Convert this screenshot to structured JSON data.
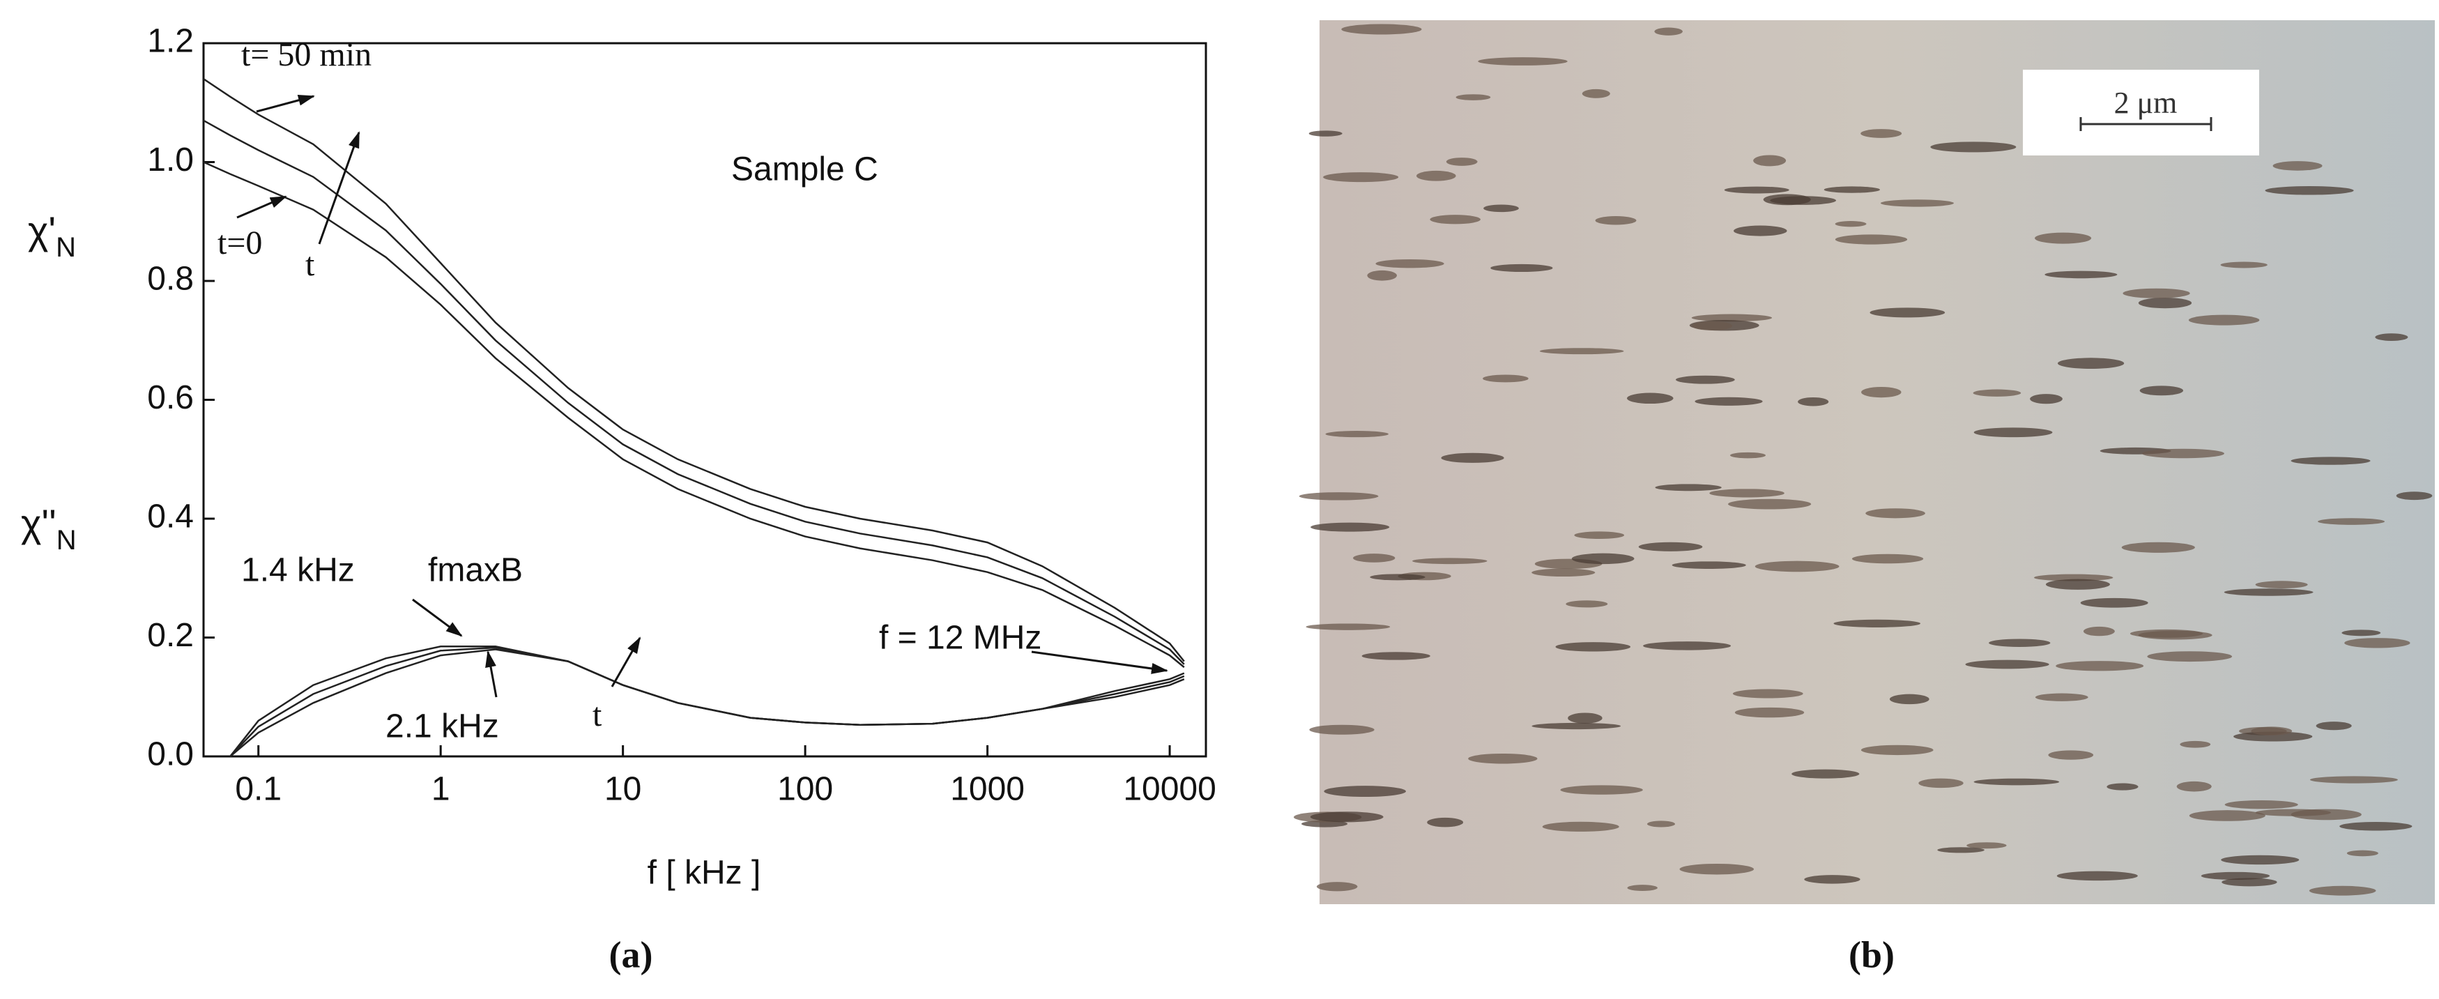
{
  "chart_data": {
    "type": "line",
    "x_label": "f [ kHz ]",
    "y_labels": [
      {
        "main": "χ'",
        "sub": "N"
      },
      {
        "main": "χ''",
        "sub": "N"
      }
    ],
    "log_x": true,
    "x": [
      0.05,
      0.07,
      0.1,
      0.2,
      0.5,
      1,
      2,
      5,
      10,
      20,
      50,
      100,
      200,
      500,
      1000,
      2000,
      5000,
      10000,
      12000
    ],
    "series": [
      {
        "color": "#222222",
        "values": [
          1.14,
          1.11,
          1.08,
          1.03,
          0.93,
          0.83,
          0.73,
          0.62,
          0.55,
          0.5,
          0.45,
          0.42,
          0.4,
          0.38,
          0.36,
          0.32,
          0.25,
          0.19,
          0.16
        ]
      },
      {
        "color": "#222222",
        "values": [
          1.07,
          1.045,
          1.02,
          0.975,
          0.885,
          0.795,
          0.7,
          0.595,
          0.525,
          0.475,
          0.425,
          0.395,
          0.375,
          0.355,
          0.335,
          0.3,
          0.235,
          0.18,
          0.155
        ]
      },
      {
        "color": "#222222",
        "values": [
          1.0,
          0.98,
          0.96,
          0.92,
          0.84,
          0.76,
          0.67,
          0.57,
          0.5,
          0.45,
          0.4,
          0.37,
          0.35,
          0.33,
          0.31,
          0.28,
          0.22,
          0.17,
          0.15
        ]
      },
      {
        "color": "#222222",
        "values": [
          null,
          0,
          0.06,
          0.12,
          0.165,
          0.185,
          0.185,
          0.16,
          0.12,
          0.09,
          0.065,
          0.057,
          0.053,
          0.055,
          0.065,
          0.08,
          0.11,
          0.13,
          0.14
        ]
      },
      {
        "color": "#222222",
        "values": [
          null,
          0,
          0.05,
          0.105,
          0.152,
          0.178,
          0.183,
          0.16,
          0.12,
          0.09,
          0.065,
          0.057,
          0.053,
          0.055,
          0.065,
          0.08,
          0.105,
          0.125,
          0.135
        ]
      },
      {
        "color": "#222222",
        "values": [
          null,
          0,
          0.04,
          0.09,
          0.14,
          0.17,
          0.18,
          0.16,
          0.12,
          0.09,
          0.065,
          0.057,
          0.053,
          0.055,
          0.065,
          0.08,
          0.1,
          0.12,
          0.13
        ]
      }
    ],
    "xlim": [
      0.05,
      15800
    ],
    "xticks": [
      0.1,
      1,
      10,
      100,
      1000,
      10000
    ],
    "ylim": [
      0,
      1.2
    ],
    "yticks": [
      {
        "value": 0,
        "label": "0.0"
      },
      0.2,
      0.4,
      0.6,
      0.8,
      {
        "value": 1,
        "label": "1.0"
      },
      1.2
    ],
    "annotations": [
      "t= 50 min",
      "t=0",
      "t",
      "Sample C",
      "1.4 kHz",
      "fmaxB",
      "2.1 kHz",
      "t",
      "f = 12 MHz"
    ]
  },
  "panels": {
    "a_label": "(a)",
    "b_label": "(b)"
  },
  "micrograph": {
    "scale_bar_label": "2 μm"
  }
}
